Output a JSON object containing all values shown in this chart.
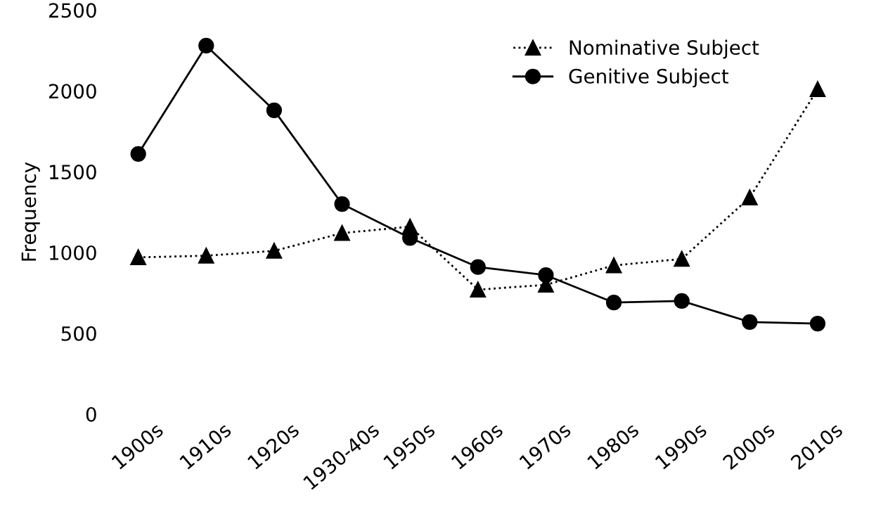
{
  "chart_data": {
    "type": "line",
    "ylabel": "Frequency",
    "categories": [
      "1900s",
      "1910s",
      "1920s",
      "1930-40s",
      "1950s",
      "1960s",
      "1970s",
      "1980s",
      "1990s",
      "2000s",
      "2010s"
    ],
    "series": [
      {
        "name": "Nominative Subject",
        "color": "#000000",
        "marker": "triangle",
        "line_style": "dotted",
        "values": [
          970,
          980,
          1010,
          1120,
          1160,
          770,
          800,
          920,
          960,
          1340,
          2010
        ]
      },
      {
        "name": "Genitive Subject",
        "color": "#000000",
        "marker": "circle",
        "line_style": "solid",
        "values": [
          1610,
          2280,
          1880,
          1300,
          1090,
          910,
          860,
          690,
          700,
          570,
          560
        ]
      }
    ],
    "ylim": [
      0,
      2500
    ],
    "yticks": [
      0,
      500,
      1000,
      1500,
      2000,
      2500
    ],
    "grid": false,
    "legend": "top right"
  }
}
